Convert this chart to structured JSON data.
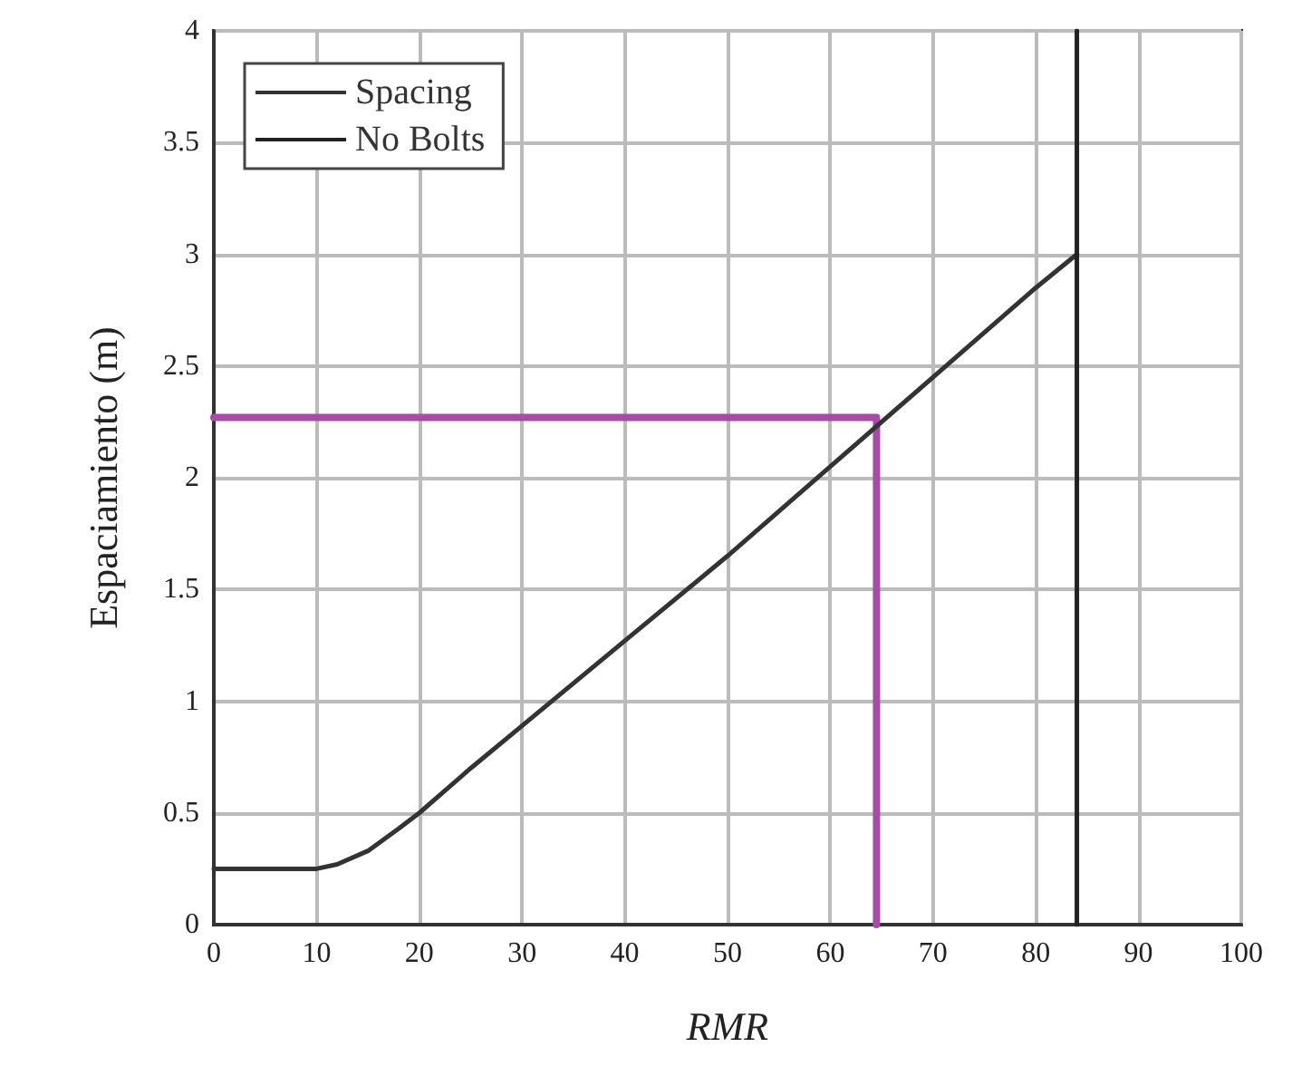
{
  "chart_data": {
    "type": "line",
    "xlabel": "RMR",
    "ylabel": "Espaciamiento (m)",
    "series": [
      {
        "name": "Spacing",
        "color": "#333333",
        "x": [
          0,
          10,
          12,
          15,
          18,
          20,
          25,
          30,
          40,
          50,
          60,
          70,
          80,
          84
        ],
        "values": [
          0.25,
          0.25,
          0.27,
          0.33,
          0.43,
          0.5,
          0.7,
          0.89,
          1.27,
          1.65,
          2.05,
          2.45,
          2.85,
          3
        ]
      },
      {
        "name": "No Bolts",
        "color": "#222222",
        "x": [
          84,
          84
        ],
        "values": [
          0,
          4
        ]
      },
      {
        "color": "#a64ca6",
        "x": [
          0,
          64.5,
          64.5
        ],
        "values": [
          2.27,
          2.27,
          0
        ]
      }
    ],
    "xlim": [
      0,
      100
    ],
    "xticks": [
      0,
      10,
      20,
      30,
      40,
      50,
      60,
      70,
      80,
      90,
      100
    ],
    "ylim": [
      0,
      4
    ],
    "yticks": [
      0,
      0.5,
      1,
      1.5,
      2,
      2.5,
      3,
      3.5,
      4
    ],
    "grid": true,
    "legend": "top left",
    "marker": "none",
    "line_style": "solid"
  }
}
